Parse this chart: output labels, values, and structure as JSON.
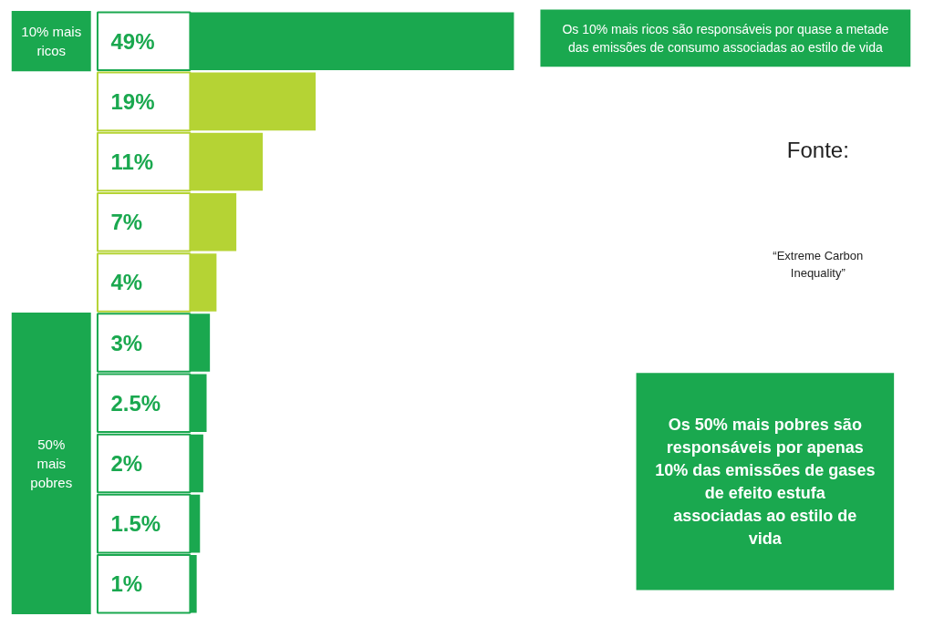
{
  "chart_data": {
    "type": "bar",
    "orientation": "horizontal",
    "categories": [
      null,
      null,
      null,
      null,
      null,
      null,
      null,
      null,
      null,
      null
    ],
    "values": [
      49,
      19,
      11,
      7,
      4,
      3,
      2.5,
      2,
      1.5,
      1
    ],
    "colors": [
      "#1aa84f",
      "#b5d334",
      "#b5d334",
      "#b5d334",
      "#b5d334",
      "#1aa84f",
      "#1aa84f",
      "#1aa84f",
      "#1aa84f",
      "#1aa84f"
    ],
    "value_labels": [
      "49%",
      "19%",
      "11%",
      "7%",
      "4%",
      "3%",
      "2.5%",
      "2%",
      "1.5%",
      "1%"
    ],
    "tick_labels": false,
    "grid": false,
    "annotations": [
      "10% mais ricos",
      "50% mais pobres",
      "Os 10% mais ricos são responsáveis por quase a metade das emissões de consumo associadas ao estilo de vida",
      "Fonte:",
      "“Extreme Carbon Inequality”",
      "Os 50% mais pobres são responsáveis por apenas 10% das emissões de gases de efeito estufa associadas ao estilo de vida"
    ]
  }
}
